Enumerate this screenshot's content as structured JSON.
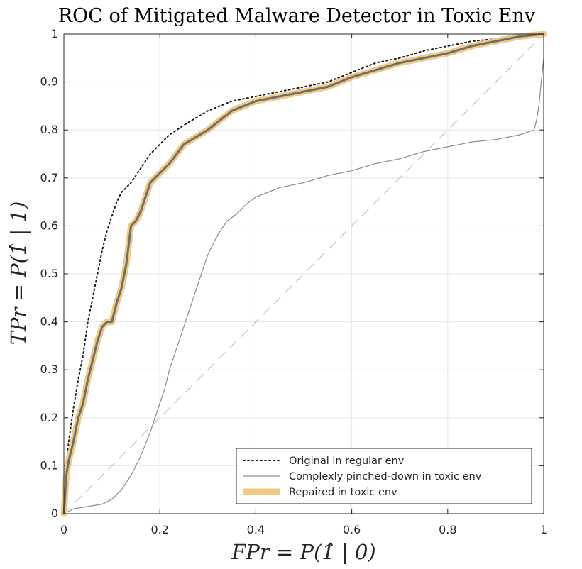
{
  "chart_data": {
    "type": "line",
    "title": "ROC of Mitigated Malware Detector in Toxic Env",
    "xlabel": "FPr = P(1̂ | 0)",
    "ylabel": "TPr = P(1̂ | 1)",
    "xlim": [
      0,
      1
    ],
    "ylim": [
      0,
      1
    ],
    "xticks": [
      "0",
      "0.2",
      "0.4",
      "0.6",
      "0.8",
      "1"
    ],
    "yticks": [
      "0",
      "0.1",
      "0.2",
      "0.3",
      "0.4",
      "0.5",
      "0.6",
      "0.7",
      "0.8",
      "0.9",
      "1"
    ],
    "grid": true,
    "legend_position": "bottom-right",
    "colors": {
      "original": "#1a1a1a",
      "pinched": "#8c8c8c",
      "repaired_band": "#f0c983",
      "repaired_core": "#6e6e6e",
      "diagonal": "#bfbfbf",
      "grid": "#e6e6e6",
      "axes": "#262626"
    },
    "series": [
      {
        "name": "Original in regular env",
        "style": "dotted",
        "x": [
          0,
          0.005,
          0.01,
          0.02,
          0.03,
          0.04,
          0.05,
          0.06,
          0.07,
          0.08,
          0.09,
          0.1,
          0.11,
          0.12,
          0.14,
          0.16,
          0.18,
          0.2,
          0.22,
          0.25,
          0.3,
          0.35,
          0.4,
          0.45,
          0.5,
          0.55,
          0.6,
          0.65,
          0.7,
          0.75,
          0.8,
          0.85,
          0.9,
          0.95,
          1.0
        ],
        "y": [
          0,
          0.1,
          0.15,
          0.22,
          0.28,
          0.33,
          0.4,
          0.45,
          0.5,
          0.55,
          0.59,
          0.62,
          0.65,
          0.67,
          0.69,
          0.72,
          0.75,
          0.77,
          0.79,
          0.81,
          0.84,
          0.86,
          0.87,
          0.88,
          0.89,
          0.9,
          0.92,
          0.94,
          0.95,
          0.965,
          0.975,
          0.985,
          0.99,
          0.998,
          1.0
        ]
      },
      {
        "name": "Complexly pinched-down in toxic env",
        "style": "solid",
        "x": [
          0,
          0.02,
          0.05,
          0.08,
          0.1,
          0.12,
          0.14,
          0.16,
          0.18,
          0.19,
          0.2,
          0.21,
          0.22,
          0.23,
          0.25,
          0.27,
          0.29,
          0.3,
          0.32,
          0.34,
          0.36,
          0.38,
          0.4,
          0.45,
          0.5,
          0.55,
          0.6,
          0.65,
          0.7,
          0.75,
          0.8,
          0.85,
          0.9,
          0.95,
          0.98,
          0.985,
          0.99,
          1.0
        ],
        "y": [
          0,
          0.01,
          0.015,
          0.02,
          0.03,
          0.05,
          0.08,
          0.12,
          0.17,
          0.2,
          0.23,
          0.26,
          0.3,
          0.33,
          0.39,
          0.45,
          0.51,
          0.54,
          0.58,
          0.61,
          0.625,
          0.645,
          0.66,
          0.68,
          0.69,
          0.705,
          0.715,
          0.73,
          0.74,
          0.755,
          0.765,
          0.775,
          0.78,
          0.79,
          0.8,
          0.82,
          0.85,
          0.95
        ]
      },
      {
        "name": "Repaired in toxic env",
        "style": "thick-band",
        "x": [
          0,
          0.005,
          0.01,
          0.02,
          0.03,
          0.04,
          0.05,
          0.06,
          0.07,
          0.08,
          0.09,
          0.1,
          0.11,
          0.12,
          0.13,
          0.14,
          0.15,
          0.16,
          0.17,
          0.18,
          0.19,
          0.2,
          0.22,
          0.25,
          0.3,
          0.35,
          0.4,
          0.45,
          0.5,
          0.55,
          0.6,
          0.65,
          0.7,
          0.75,
          0.8,
          0.85,
          0.9,
          0.95,
          1.0
        ],
        "y": [
          0,
          0.08,
          0.11,
          0.15,
          0.2,
          0.23,
          0.28,
          0.32,
          0.36,
          0.39,
          0.4,
          0.4,
          0.44,
          0.47,
          0.52,
          0.6,
          0.61,
          0.63,
          0.66,
          0.69,
          0.7,
          0.71,
          0.73,
          0.77,
          0.8,
          0.84,
          0.86,
          0.87,
          0.88,
          0.89,
          0.91,
          0.925,
          0.94,
          0.95,
          0.96,
          0.975,
          0.985,
          0.995,
          1.0
        ]
      }
    ],
    "diagonal": {
      "x": [
        0,
        1
      ],
      "y": [
        0,
        1
      ],
      "style": "dashed"
    }
  }
}
